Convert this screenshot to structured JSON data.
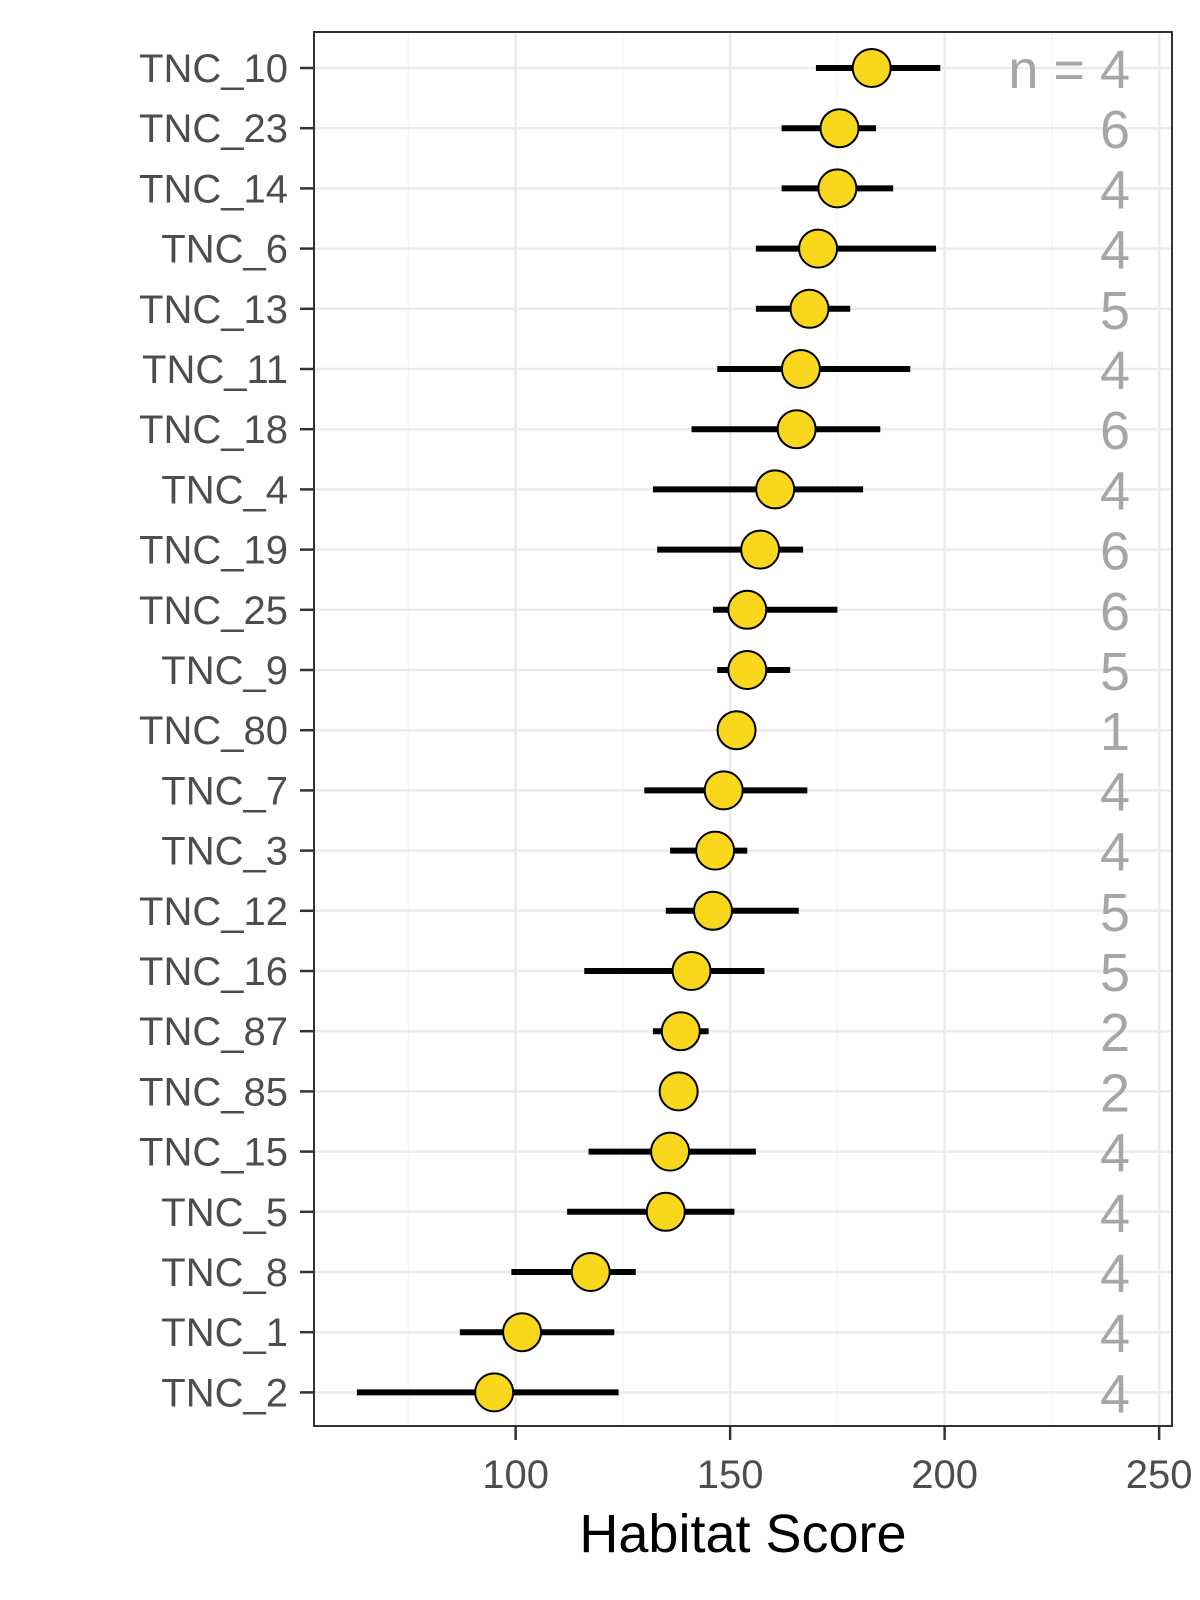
{
  "chart_data": {
    "type": "scatter",
    "subtype": "dot-and-whisker",
    "xlabel": "Habitat Score",
    "xlim": [
      53,
      253
    ],
    "x_ticks": [
      100,
      150,
      200,
      250
    ],
    "grid": true,
    "n_prefix": "n = ",
    "colors": {
      "point_fill": "#F9D71C",
      "point_stroke": "#000000",
      "whisker": "#000000",
      "n_text": "#A6A6A6",
      "grid_major": "#EBEBEB",
      "grid_minor": "#F5F5F5"
    },
    "sites": [
      {
        "name": "TNC_10",
        "mean": 183,
        "low": 170,
        "high": 199,
        "n": "4"
      },
      {
        "name": "TNC_23",
        "mean": 175.5,
        "low": 162,
        "high": 184,
        "n": "6"
      },
      {
        "name": "TNC_14",
        "mean": 175,
        "low": 162,
        "high": 188,
        "n": "4"
      },
      {
        "name": "TNC_6",
        "mean": 170.5,
        "low": 156,
        "high": 198,
        "n": "4"
      },
      {
        "name": "TNC_13",
        "mean": 168.5,
        "low": 156,
        "high": 178,
        "n": "5"
      },
      {
        "name": "TNC_11",
        "mean": 166.5,
        "low": 147,
        "high": 192,
        "n": "4"
      },
      {
        "name": "TNC_18",
        "mean": 165.5,
        "low": 141,
        "high": 185,
        "n": "6"
      },
      {
        "name": "TNC_4",
        "mean": 160.5,
        "low": 132,
        "high": 181,
        "n": "4"
      },
      {
        "name": "TNC_19",
        "mean": 157,
        "low": 133,
        "high": 167,
        "n": "6"
      },
      {
        "name": "TNC_25",
        "mean": 154,
        "low": 146,
        "high": 175,
        "n": "6"
      },
      {
        "name": "TNC_9",
        "mean": 154,
        "low": 147,
        "high": 164,
        "n": "5"
      },
      {
        "name": "TNC_80",
        "mean": 151.5,
        "low": null,
        "high": null,
        "n": "1"
      },
      {
        "name": "TNC_7",
        "mean": 148.5,
        "low": 130,
        "high": 168,
        "n": "4"
      },
      {
        "name": "TNC_3",
        "mean": 146.5,
        "low": 136,
        "high": 154,
        "n": "4"
      },
      {
        "name": "TNC_12",
        "mean": 146,
        "low": 135,
        "high": 166,
        "n": "5"
      },
      {
        "name": "TNC_16",
        "mean": 141,
        "low": 116,
        "high": 158,
        "n": "5"
      },
      {
        "name": "TNC_87",
        "mean": 138.5,
        "low": 132,
        "high": 145,
        "n": "2"
      },
      {
        "name": "TNC_85",
        "mean": 138,
        "low": null,
        "high": null,
        "n": "2"
      },
      {
        "name": "TNC_15",
        "mean": 136,
        "low": 117,
        "high": 156,
        "n": "4"
      },
      {
        "name": "TNC_5",
        "mean": 135,
        "low": 112,
        "high": 151,
        "n": "4"
      },
      {
        "name": "TNC_8",
        "mean": 117.5,
        "low": 99,
        "high": 128,
        "n": "4"
      },
      {
        "name": "TNC_1",
        "mean": 101.5,
        "low": 87,
        "high": 123,
        "n": "4"
      },
      {
        "name": "TNC_2",
        "mean": 95,
        "low": 63,
        "high": 124,
        "n": "4"
      }
    ]
  }
}
